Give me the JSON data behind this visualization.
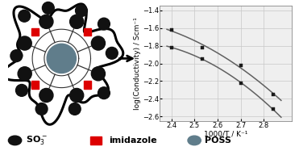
{
  "graph_xlim": [
    2.35,
    2.92
  ],
  "graph_ylim": [
    -2.65,
    -1.35
  ],
  "xticks": [
    2.4,
    2.5,
    2.6,
    2.7,
    2.8
  ],
  "yticks": [
    -2.6,
    -2.4,
    -2.2,
    -2.0,
    -1.8,
    -1.6,
    -1.4
  ],
  "xlabel": "1000/T / K⁻¹",
  "ylabel": "log(Conductivity) / Scm⁻¹",
  "series1_x": [
    2.4,
    2.535,
    2.7,
    2.84
  ],
  "series1_y": [
    -1.62,
    -1.82,
    -2.02,
    -2.35
  ],
  "series2_x": [
    2.4,
    2.535,
    2.7,
    2.84
  ],
  "series2_y": [
    -1.82,
    -1.95,
    -2.22,
    -2.52
  ],
  "line_color": "#606060",
  "marker_color": "#1a1a1a",
  "marker": "s",
  "marker_size": 3.5,
  "grid_color": "#c8c8c8",
  "bg_color": "#efefef",
  "so3_color": "#111111",
  "imidazole_color": "#dd0000",
  "poss_color": "#607d8b",
  "tick_fontsize": 6,
  "label_fontsize": 6.5,
  "legend_fontsize": 8
}
